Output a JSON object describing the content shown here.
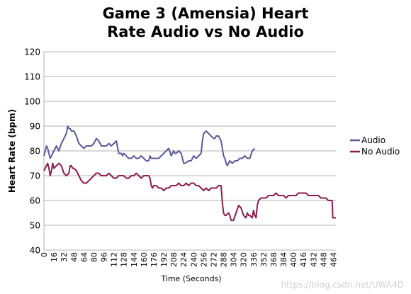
{
  "chart_data": {
    "type": "line",
    "title_lines": [
      "Game 3 (Amensia) Heart",
      "Rate Audio vs No Audio"
    ],
    "xlabel": "Time (Seconds)",
    "ylabel": "Heart Rate (bpm)",
    "xlim": [
      0,
      468
    ],
    "ylim": [
      40,
      120
    ],
    "y_ticks": [
      40,
      50,
      60,
      70,
      80,
      90,
      100,
      110,
      120
    ],
    "x_ticks": [
      0,
      16,
      32,
      48,
      64,
      80,
      96,
      112,
      128,
      144,
      160,
      176,
      192,
      208,
      224,
      240,
      256,
      272,
      288,
      304,
      320,
      336,
      352,
      368,
      384,
      400,
      416,
      432,
      448,
      464
    ],
    "grid": "horizontal",
    "legend_position": "right",
    "series": [
      {
        "name": "Audio",
        "color": "#5b5b9b",
        "x": [
          0,
          2,
          4,
          6,
          8,
          10,
          12,
          16,
          20,
          24,
          28,
          32,
          36,
          38,
          40,
          42,
          44,
          48,
          52,
          56,
          60,
          64,
          68,
          72,
          76,
          80,
          84,
          88,
          92,
          96,
          100,
          104,
          108,
          112,
          116,
          120,
          124,
          126,
          128,
          132,
          136,
          140,
          144,
          148,
          152,
          156,
          160,
          164,
          168,
          170,
          172,
          176,
          180,
          184,
          188,
          192,
          196,
          200,
          204,
          208,
          210,
          212,
          216,
          220,
          224,
          226,
          232,
          236,
          240,
          244,
          248,
          252,
          254,
          256,
          260,
          264,
          268,
          272,
          274,
          276,
          280,
          284,
          288,
          290,
          292,
          294,
          298,
          302,
          306,
          310,
          314,
          318,
          322,
          326,
          330,
          334,
          338
        ],
        "values": [
          78,
          80,
          82,
          81,
          79,
          77,
          78,
          80,
          82,
          80,
          83,
          85,
          87,
          90,
          89,
          89,
          88,
          88,
          86,
          83,
          82,
          81,
          82,
          82,
          82,
          83,
          85,
          84,
          82,
          82,
          82,
          83,
          82,
          83,
          84,
          79,
          79,
          78,
          79,
          78,
          77,
          77,
          78,
          77,
          77,
          78,
          77,
          76,
          76,
          78,
          77,
          77,
          77,
          77,
          78,
          79,
          80,
          81,
          78,
          80,
          79,
          79,
          80,
          79,
          75,
          75,
          76,
          76,
          78,
          77,
          78,
          79,
          84,
          87,
          88,
          87,
          86,
          85,
          85,
          86,
          86,
          84,
          78,
          77,
          75,
          74,
          76,
          75,
          76,
          76,
          77,
          77,
          78,
          77,
          77,
          80,
          81
        ]
      },
      {
        "name": "No Audio",
        "color": "#8b1f50",
        "x": [
          0,
          4,
          6,
          8,
          10,
          12,
          14,
          16,
          20,
          24,
          28,
          32,
          36,
          40,
          42,
          44,
          46,
          48,
          52,
          56,
          60,
          64,
          68,
          72,
          76,
          80,
          84,
          88,
          92,
          96,
          100,
          104,
          108,
          112,
          116,
          120,
          124,
          128,
          132,
          136,
          140,
          144,
          148,
          152,
          156,
          160,
          164,
          168,
          170,
          172,
          174,
          176,
          180,
          184,
          188,
          192,
          196,
          200,
          204,
          208,
          212,
          216,
          220,
          224,
          228,
          232,
          236,
          240,
          244,
          248,
          252,
          256,
          260,
          264,
          268,
          272,
          276,
          280,
          284,
          286,
          288,
          290,
          292,
          296,
          298,
          300,
          304,
          308,
          312,
          316,
          320,
          324,
          326,
          328,
          330,
          334,
          336,
          338,
          340,
          342,
          344,
          348,
          352,
          356,
          360,
          364,
          368,
          372,
          376,
          380,
          384,
          388,
          392,
          396,
          400,
          404,
          408,
          412,
          416,
          420,
          424,
          428,
          432,
          436,
          440,
          444,
          448,
          452,
          456,
          460,
          462,
          463,
          464,
          468
        ],
        "values": [
          72,
          74,
          75,
          73,
          70,
          72,
          75,
          73,
          74,
          75,
          74,
          71,
          70,
          71,
          74,
          74,
          73,
          73,
          72,
          70,
          68,
          67,
          67,
          68,
          69,
          70,
          71,
          71,
          70,
          70,
          70,
          71,
          70,
          69,
          69,
          70,
          70,
          70,
          69,
          69,
          70,
          70,
          71,
          70,
          69,
          70,
          70,
          70,
          69,
          66,
          65,
          66,
          66,
          65,
          65,
          64,
          65,
          65,
          66,
          66,
          66,
          67,
          66,
          66,
          67,
          66,
          67,
          67,
          66,
          66,
          65,
          64,
          65,
          64,
          65,
          65,
          65,
          66,
          66,
          59,
          55,
          54,
          54,
          55,
          54,
          52,
          52,
          55,
          58,
          57,
          54,
          53,
          55,
          54,
          54,
          53,
          56,
          54,
          53,
          58,
          60,
          61,
          61,
          61,
          62,
          62,
          62,
          63,
          62,
          62,
          62,
          61,
          62,
          62,
          62,
          62,
          63,
          63,
          63,
          63,
          62,
          62,
          62,
          62,
          62,
          61,
          61,
          61,
          60,
          60,
          60,
          53,
          53,
          53
        ]
      }
    ]
  },
  "watermark": "https://blog.csdn.net/UWA4D"
}
